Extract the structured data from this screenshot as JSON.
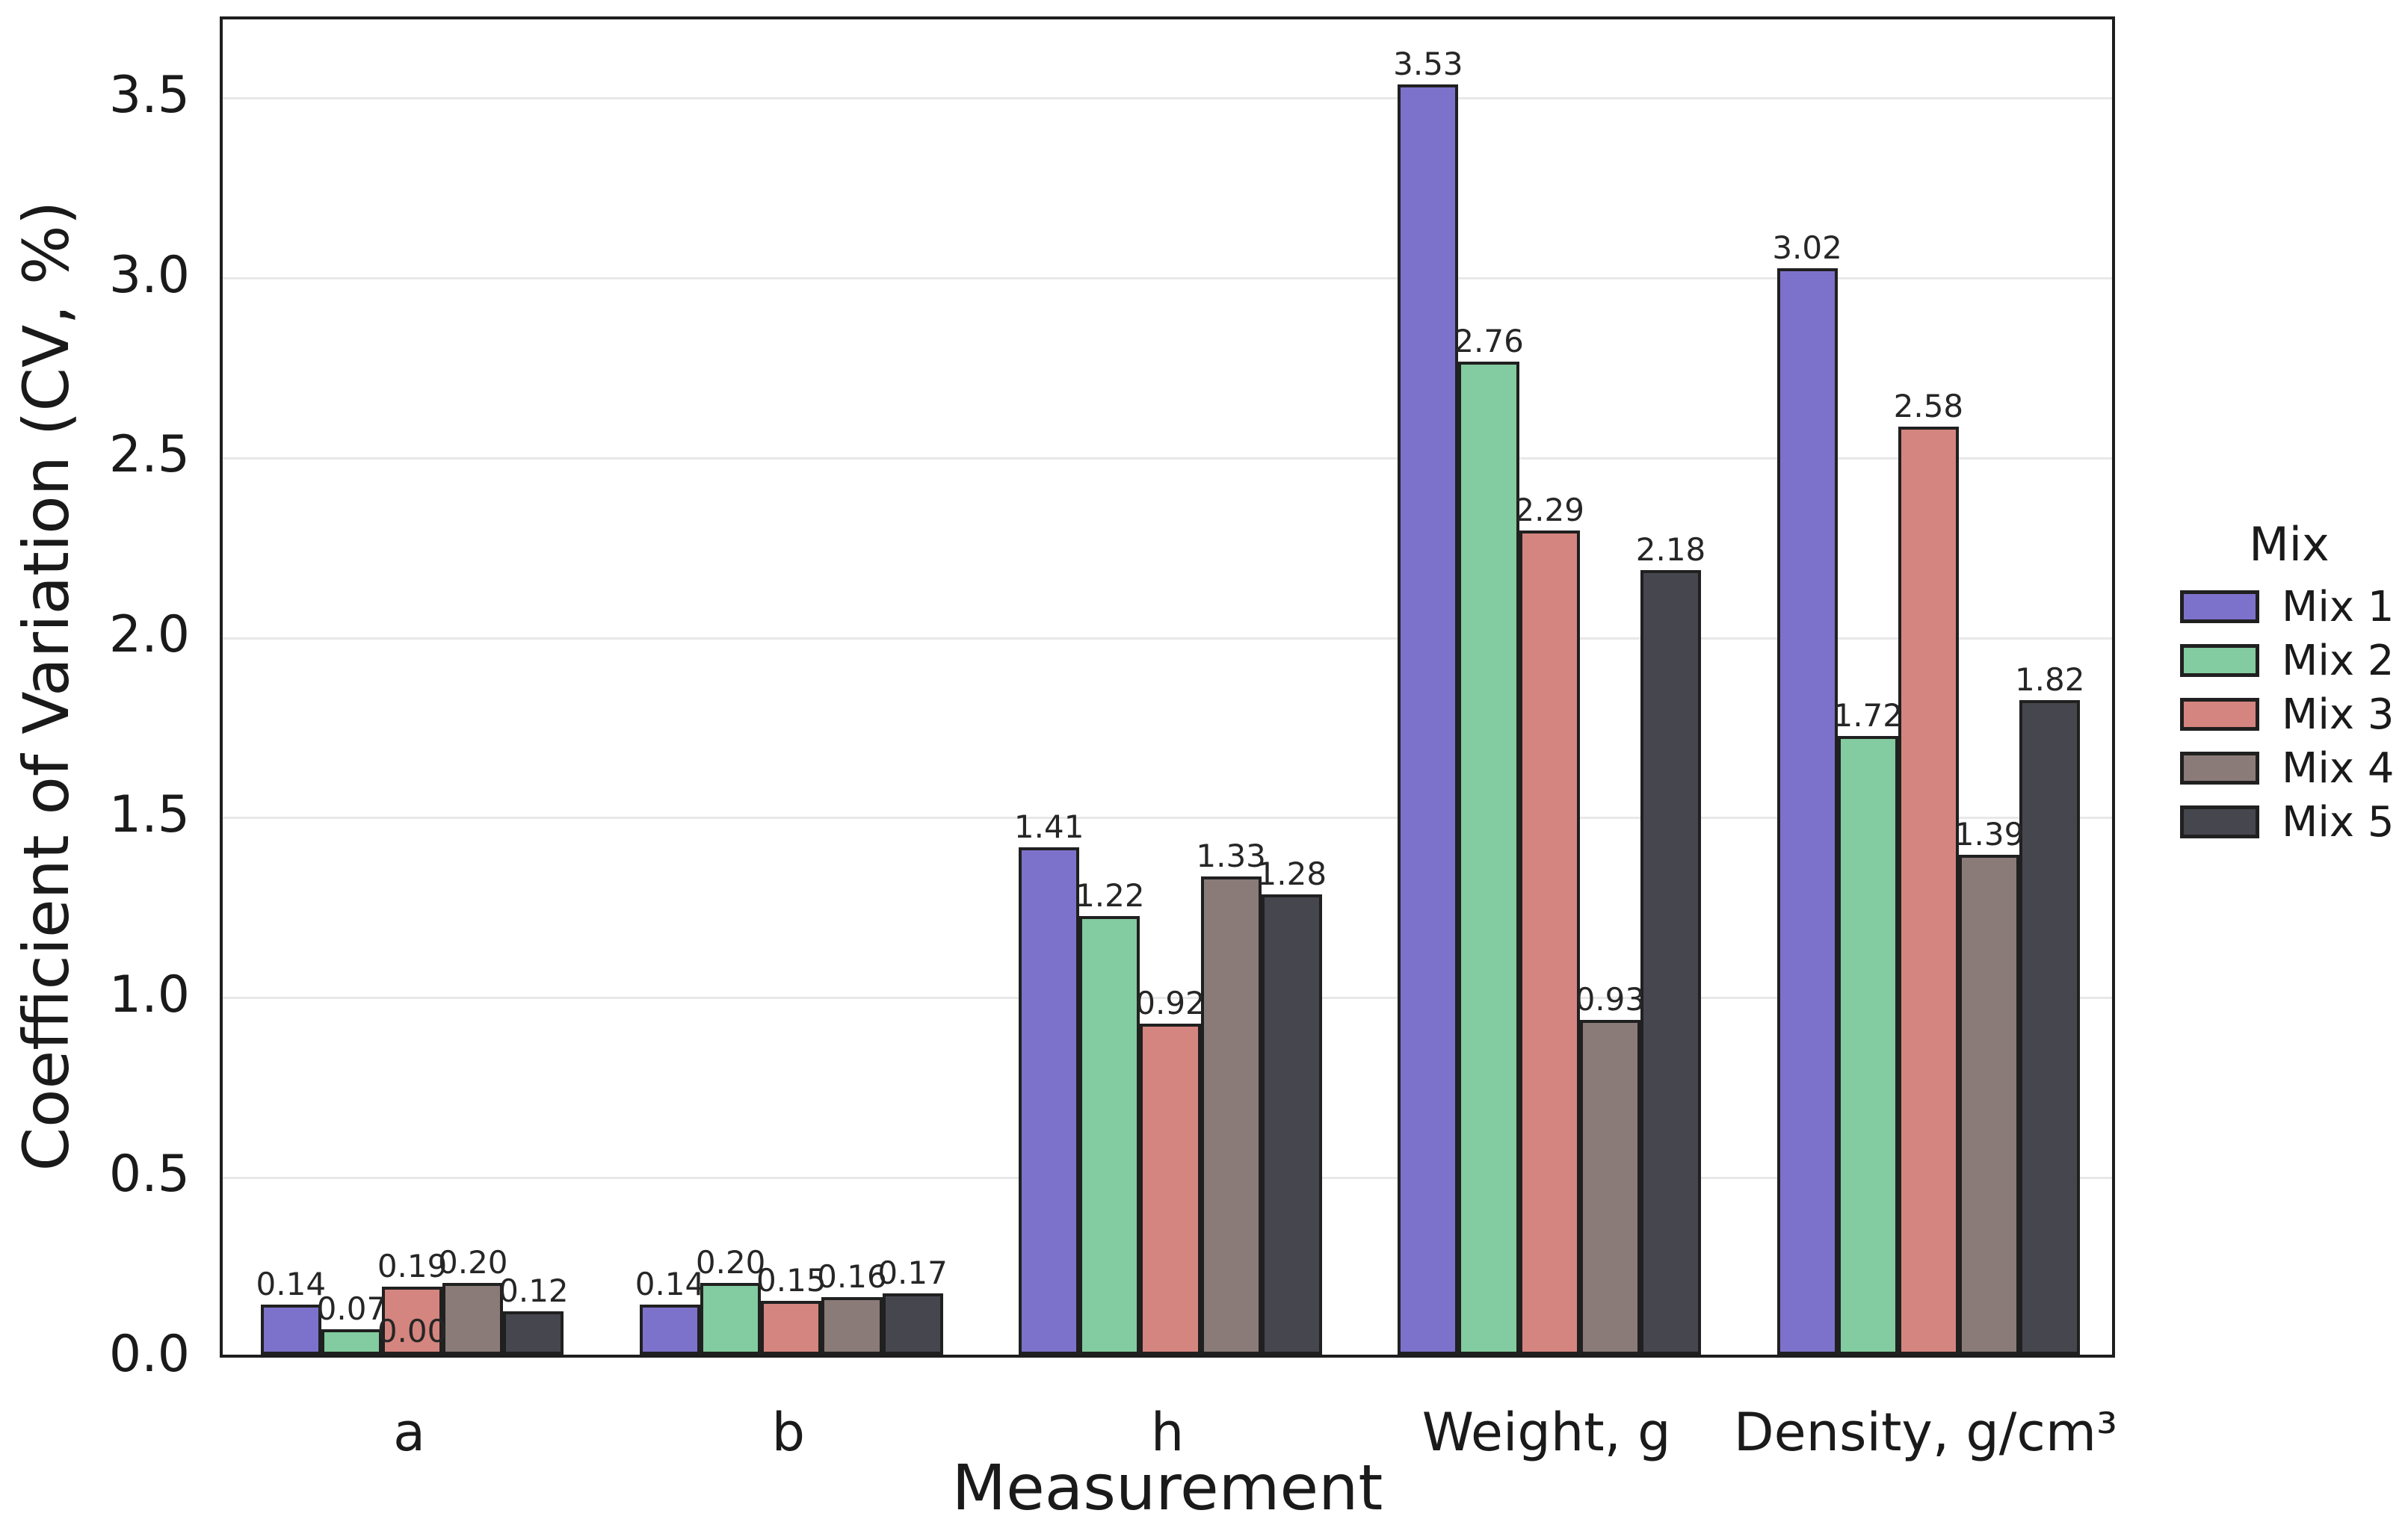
{
  "chart_data": {
    "type": "bar",
    "title": "",
    "xlabel": "Measurement",
    "ylabel": "Coefficient of Variation (CV, %)",
    "categories": [
      "a",
      "b",
      "h",
      "Weight, g",
      "Density, g/cm³"
    ],
    "series": [
      {
        "name": "Mix 1",
        "color": "#7d72cb",
        "values": [
          0.14,
          0.14,
          1.41,
          3.53,
          3.02
        ]
      },
      {
        "name": "Mix 2",
        "color": "#83cba0",
        "values": [
          0.07,
          0.2,
          1.22,
          2.76,
          1.72
        ]
      },
      {
        "name": "Mix 3",
        "color": "#d5857f",
        "values": [
          0.19,
          0.15,
          0.92,
          2.29,
          2.58
        ]
      },
      {
        "name": "Mix 4",
        "color": "#8a7b78",
        "values": [
          0.2,
          0.16,
          1.33,
          0.93,
          1.39
        ]
      },
      {
        "name": "Mix 5",
        "color": "#46464e",
        "values": [
          0.12,
          0.17,
          1.28,
          2.18,
          1.82
        ]
      }
    ],
    "bar_labels": {
      "format": "two_decimals",
      "extra_annotations": [
        {
          "category": "a",
          "series": "Mix 3",
          "text": "0.00",
          "position": "inside-bottom"
        }
      ]
    },
    "legend": {
      "title": "Mix",
      "position": "right",
      "entries": [
        "Mix 1",
        "Mix 2",
        "Mix 3",
        "Mix 4",
        "Mix 5"
      ]
    },
    "yticks": [
      0.0,
      0.5,
      1.0,
      1.5,
      2.0,
      2.5,
      3.0,
      3.5
    ],
    "ytick_labels": [
      "0.0",
      "0.5",
      "1.0",
      "1.5",
      "2.0",
      "2.5",
      "3.0",
      "3.5"
    ],
    "ylim": [
      0,
      3.72
    ],
    "grid": "horizontal",
    "style": {
      "bar_edge_color": "#202020",
      "grid_color": "#e8e8e8",
      "spine_color": "#1e1e1e",
      "text_color": "#1a1a1a",
      "annotation_color": "#262626",
      "background": "#ffffff"
    }
  }
}
